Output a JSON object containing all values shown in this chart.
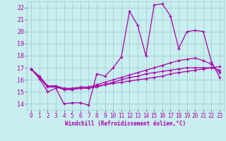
{
  "xlabel": "Windchill (Refroidissement éolien,°C)",
  "xlim": [
    -0.5,
    23.5
  ],
  "ylim": [
    13.5,
    22.5
  ],
  "yticks": [
    14,
    15,
    16,
    17,
    18,
    19,
    20,
    21,
    22
  ],
  "xticks": [
    0,
    1,
    2,
    3,
    4,
    5,
    6,
    7,
    8,
    9,
    10,
    11,
    12,
    13,
    14,
    15,
    16,
    17,
    18,
    19,
    20,
    21,
    22,
    23
  ],
  "background_color": "#c8eef0",
  "line_color": "#aa00aa",
  "grid_color": "#99cccc",
  "series": [
    {
      "x": [
        0,
        1,
        2,
        3,
        4,
        5,
        6,
        7,
        8,
        9,
        10,
        11,
        12,
        13,
        14,
        15,
        16,
        17,
        18,
        19,
        20,
        21,
        22,
        23
      ],
      "y": [
        16.9,
        16.1,
        15.0,
        15.3,
        14.0,
        14.1,
        14.1,
        13.9,
        16.5,
        16.3,
        17.0,
        17.9,
        21.7,
        20.5,
        18.0,
        22.2,
        22.3,
        21.3,
        18.6,
        20.0,
        20.1,
        20.0,
        17.5,
        16.2
      ]
    },
    {
      "x": [
        0,
        1,
        2,
        3,
        4,
        5,
        6,
        7,
        8,
        9,
        10,
        11,
        12,
        13,
        14,
        15,
        16,
        17,
        18,
        19,
        20,
        21,
        22,
        23
      ],
      "y": [
        16.9,
        16.3,
        15.5,
        15.5,
        15.3,
        15.3,
        15.4,
        15.4,
        15.6,
        15.8,
        16.0,
        16.2,
        16.4,
        16.6,
        16.8,
        17.0,
        17.2,
        17.4,
        17.6,
        17.7,
        17.8,
        17.6,
        17.3,
        16.6
      ]
    },
    {
      "x": [
        0,
        1,
        2,
        3,
        4,
        5,
        6,
        7,
        8,
        9,
        10,
        11,
        12,
        13,
        14,
        15,
        16,
        17,
        18,
        19,
        20,
        21,
        22,
        23
      ],
      "y": [
        16.9,
        16.2,
        15.4,
        15.4,
        15.2,
        15.2,
        15.3,
        15.3,
        15.4,
        15.6,
        15.7,
        15.8,
        15.9,
        16.0,
        16.1,
        16.2,
        16.3,
        16.5,
        16.6,
        16.7,
        16.8,
        16.9,
        17.0,
        17.1
      ]
    },
    {
      "x": [
        0,
        1,
        2,
        3,
        4,
        5,
        6,
        7,
        8,
        9,
        10,
        11,
        12,
        13,
        14,
        15,
        16,
        17,
        18,
        19,
        20,
        21,
        22,
        23
      ],
      "y": [
        16.9,
        16.2,
        15.4,
        15.5,
        15.2,
        15.2,
        15.3,
        15.3,
        15.5,
        15.6,
        15.8,
        16.0,
        16.2,
        16.3,
        16.5,
        16.6,
        16.7,
        16.8,
        16.9,
        17.0,
        17.0,
        17.0,
        17.0,
        16.8
      ]
    }
  ]
}
